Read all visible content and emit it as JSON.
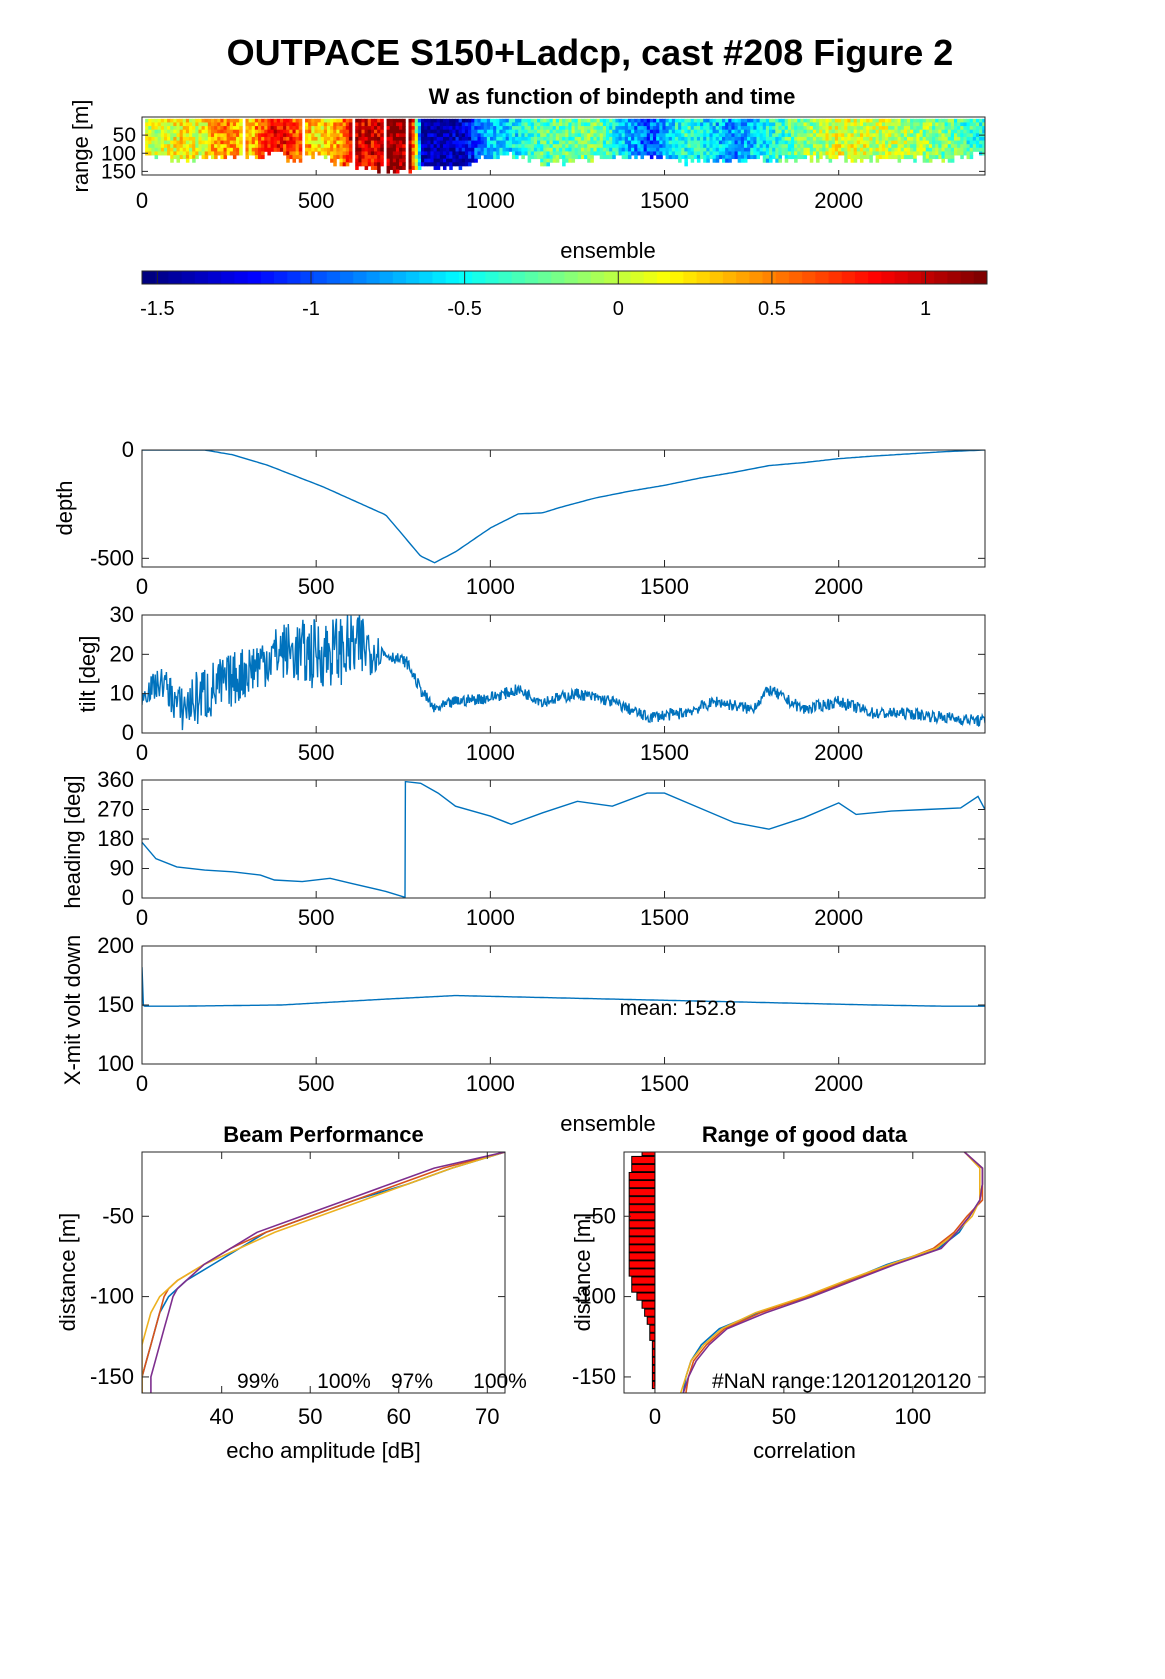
{
  "figure_title": "OUTPACE S150+Ladcp, cast #208 Figure 2",
  "colors": {
    "line": "#0072BD",
    "beam": [
      "#0072BD",
      "#D95319",
      "#EDB120",
      "#7E2F8E"
    ],
    "bar": "#FF0000"
  },
  "chart_data": [
    {
      "id": "w_image",
      "type": "heatmap",
      "title": "W as function of bindepth and time",
      "xlabel": "ensemble",
      "ylabel": "range [m]",
      "xlim": [
        0,
        2420
      ],
      "ylim": [
        160,
        0
      ],
      "xticks": [
        "0",
        "500",
        "1000",
        "1500",
        "2000"
      ],
      "yticks": [
        "50",
        "100",
        "150"
      ],
      "colormap": "jet",
      "clim": [
        -1.55,
        1.2
      ],
      "colorbar_ticks": [
        "-1.5",
        "-1",
        "-0.5",
        "0",
        "0.5",
        "1"
      ],
      "column_profile": [
        [
          0,
          0.1,
          105
        ],
        [
          40,
          0.0,
          100
        ],
        [
          100,
          0.2,
          115
        ],
        [
          160,
          0.1,
          110
        ],
        [
          230,
          0.5,
          100
        ],
        [
          300,
          0.3,
          110
        ],
        [
          380,
          0.9,
          95
        ],
        [
          440,
          0.6,
          120
        ],
        [
          500,
          0.2,
          100
        ],
        [
          560,
          0.4,
          120
        ],
        [
          600,
          1.0,
          135
        ],
        [
          660,
          0.9,
          135
        ],
        [
          720,
          1.2,
          150
        ],
        [
          770,
          1.0,
          140
        ],
        [
          800,
          -1.4,
          130
        ],
        [
          860,
          -1.5,
          140
        ],
        [
          940,
          -1.2,
          120
        ],
        [
          980,
          -0.7,
          110
        ],
        [
          1050,
          -0.6,
          100
        ],
        [
          1150,
          -0.3,
          120
        ],
        [
          1300,
          -0.2,
          110
        ],
        [
          1450,
          -1.0,
          100
        ],
        [
          1550,
          -0.4,
          120
        ],
        [
          1700,
          -0.8,
          115
        ],
        [
          1850,
          -0.3,
          110
        ],
        [
          2000,
          0.1,
          110
        ],
        [
          2150,
          0.0,
          115
        ],
        [
          2300,
          -0.2,
          110
        ],
        [
          2420,
          -0.5,
          100
        ]
      ]
    },
    {
      "id": "depth",
      "type": "line",
      "ylabel": "depth",
      "xlim": [
        0,
        2420
      ],
      "ylim": [
        -540,
        0
      ],
      "xticks": [
        "0",
        "500",
        "1000",
        "1500",
        "2000"
      ],
      "yticks": [
        "0",
        "-500"
      ],
      "x": [
        0,
        180,
        260,
        360,
        520,
        700,
        800,
        840,
        900,
        1000,
        1080,
        1150,
        1200,
        1300,
        1400,
        1500,
        1600,
        1700,
        1800,
        1900,
        2000,
        2100,
        2200,
        2300,
        2420
      ],
      "y": [
        0,
        0,
        -22,
        -70,
        -170,
        -300,
        -490,
        -520,
        -470,
        -360,
        -295,
        -290,
        -265,
        -222,
        -190,
        -163,
        -130,
        -103,
        -72,
        -58,
        -40,
        -28,
        -18,
        -8,
        0
      ]
    },
    {
      "id": "tilt",
      "type": "line",
      "ylabel": "tilt [deg]",
      "xlim": [
        0,
        2420
      ],
      "ylim": [
        0,
        30
      ],
      "xticks": [
        "0",
        "500",
        "1000",
        "1500",
        "2000"
      ],
      "yticks": [
        "0",
        "10",
        "20",
        "30"
      ],
      "x": [
        0,
        60,
        110,
        180,
        250,
        320,
        400,
        480,
        560,
        640,
        700,
        760,
        800,
        840,
        900,
        1000,
        1080,
        1150,
        1250,
        1350,
        1450,
        1550,
        1650,
        1750,
        1800,
        1900,
        2000,
        2100,
        2200,
        2300,
        2420
      ],
      "y": [
        10,
        13,
        6,
        10,
        13,
        17,
        21,
        20,
        21,
        22,
        20,
        18,
        11,
        6,
        8,
        9,
        11,
        8,
        10,
        8,
        4,
        5,
        8,
        6,
        11,
        6,
        8,
        5,
        5,
        4,
        3
      ],
      "noise": [
        3,
        4,
        6,
        8,
        7,
        7,
        7,
        9,
        9,
        9,
        1.5,
        1.5,
        1.5,
        1.5,
        1.5,
        1.5,
        1.5,
        1.5,
        1.5,
        1.5,
        1.5,
        1.5,
        1.5,
        1.5,
        1.5,
        1.5,
        1.5,
        1.5,
        1.5,
        1.5,
        1.5
      ]
    },
    {
      "id": "heading",
      "type": "line",
      "ylabel": "heading [deg]",
      "xlim": [
        0,
        2420
      ],
      "ylim": [
        0,
        360
      ],
      "xticks": [
        "0",
        "500",
        "1000",
        "1500",
        "2000"
      ],
      "yticks": [
        "0",
        "90",
        "180",
        "270",
        "360"
      ],
      "x": [
        0,
        40,
        100,
        180,
        260,
        340,
        380,
        460,
        540,
        600,
        700,
        755,
        756,
        800,
        850,
        900,
        1000,
        1060,
        1150,
        1250,
        1350,
        1450,
        1500,
        1600,
        1700,
        1800,
        1900,
        2000,
        2050,
        2150,
        2250,
        2350,
        2400,
        2420
      ],
      "y": [
        170,
        120,
        95,
        85,
        80,
        70,
        55,
        50,
        60,
        45,
        20,
        2,
        355,
        350,
        320,
        280,
        250,
        225,
        260,
        295,
        280,
        320,
        320,
        275,
        230,
        210,
        245,
        290,
        255,
        265,
        270,
        275,
        310,
        270
      ]
    },
    {
      "id": "xmit_volt",
      "type": "line",
      "ylabel": "X-mit volt down",
      "xlabel": "ensemble",
      "xlim": [
        0,
        2420
      ],
      "ylim": [
        100,
        200
      ],
      "xticks": [
        "0",
        "500",
        "1000",
        "1500",
        "2000"
      ],
      "yticks": [
        "100",
        "150",
        "200"
      ],
      "annotation": "mean: 152.8",
      "x": [
        0,
        3,
        6,
        100,
        400,
        700,
        900,
        1200,
        1500,
        1800,
        2100,
        2300,
        2420
      ],
      "y": [
        182,
        150,
        149,
        149,
        150,
        155,
        158,
        156,
        154,
        152,
        150,
        149,
        149
      ]
    },
    {
      "id": "beam",
      "type": "line",
      "title": "Beam Performance",
      "xlabel": "echo amplitude [dB]",
      "ylabel": "distance [m]",
      "xlim": [
        31,
        72
      ],
      "ylim": [
        -160,
        -10
      ],
      "xticks": [
        "40",
        "50",
        "60",
        "70"
      ],
      "yticks": [
        "-50",
        "-100",
        "-150"
      ],
      "annotations": [
        "99%",
        "100%",
        "97%",
        "100%"
      ],
      "y": [
        -10,
        -20,
        -30,
        -40,
        -50,
        -60,
        -70,
        -80,
        -90,
        -95,
        -100,
        -110,
        -120,
        -130,
        -140,
        -150,
        -160
      ],
      "series": [
        {
          "x": [
            72,
            66,
            61,
            55,
            50,
            45,
            42,
            39,
            36,
            35,
            34,
            33,
            32.5,
            32,
            31.5,
            31,
            31
          ]
        },
        {
          "x": [
            72,
            65,
            60,
            55,
            50,
            45,
            41,
            38,
            35,
            34,
            33.5,
            33,
            32.5,
            32,
            31.5,
            31,
            31
          ]
        },
        {
          "x": [
            72,
            66,
            61,
            56,
            51,
            46,
            42,
            38,
            35,
            34,
            33,
            32,
            31.5,
            31,
            31,
            31,
            31
          ]
        },
        {
          "x": [
            72,
            64,
            59,
            54,
            49,
            44,
            41,
            38,
            36,
            35,
            34.5,
            34,
            33.5,
            33,
            32.5,
            32,
            32
          ]
        }
      ]
    },
    {
      "id": "range_good",
      "type": "line",
      "title": "Range of good data",
      "xlabel": "correlation",
      "ylabel": "distance [m]",
      "xlim": [
        -12,
        128
      ],
      "ylim": [
        -160,
        -10
      ],
      "xticks": [
        "0",
        "50",
        "100"
      ],
      "yticks": [
        "-50",
        "-100",
        "-150"
      ],
      "annotation": "#NaN range:120120120120",
      "y": [
        -10,
        -20,
        -30,
        -40,
        -50,
        -60,
        -70,
        -80,
        -90,
        -100,
        -110,
        -120,
        -130,
        -140,
        -150,
        -160
      ],
      "series": [
        {
          "x": [
            120,
            127,
            127,
            126,
            122,
            118,
            110,
            90,
            75,
            60,
            40,
            25,
            18,
            14,
            12,
            11
          ]
        },
        {
          "x": [
            120,
            127,
            127,
            127,
            121,
            116,
            108,
            92,
            76,
            59,
            41,
            27,
            20,
            15,
            13,
            12
          ]
        },
        {
          "x": [
            120,
            126,
            126,
            126,
            123,
            117,
            109,
            91,
            74,
            58,
            39,
            26,
            19,
            14,
            12,
            10
          ]
        },
        {
          "x": [
            120,
            127,
            127,
            126,
            122,
            117,
            111,
            93,
            77,
            61,
            43,
            28,
            21,
            16,
            13,
            11
          ]
        }
      ],
      "bars": {
        "y": [
          -10,
          -15,
          -20,
          -25,
          -30,
          -35,
          -40,
          -45,
          -50,
          -55,
          -60,
          -65,
          -70,
          -75,
          -80,
          -85,
          -90,
          -95,
          -100,
          -105,
          -110,
          -115,
          -120,
          -125,
          -130,
          -135,
          -140,
          -145,
          -150,
          -155
        ],
        "x": [
          -5,
          -9,
          -9,
          -10,
          -10,
          -10,
          -10,
          -10,
          -10,
          -10,
          -10,
          -10,
          -10,
          -10,
          -10,
          -10,
          -9,
          -9,
          -7,
          -5,
          -4,
          -3,
          -2,
          -2,
          -1,
          -1,
          -1,
          -1,
          -1,
          -1
        ]
      }
    }
  ]
}
